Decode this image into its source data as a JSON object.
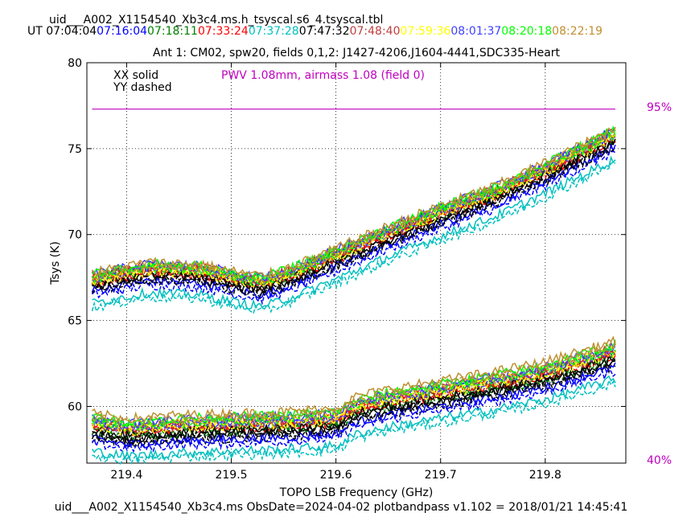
{
  "header": {
    "title": "uid___A002_X1154540_Xb3c4.ms.h_tsyscal.s6_4.tsyscal.tbl",
    "ut_label": "UT",
    "times": [
      {
        "text": "07:04:04",
        "color": "#000000"
      },
      {
        "text": "07:16:04",
        "color": "#0000ff"
      },
      {
        "text": "07:18:11",
        "color": "#008000"
      },
      {
        "text": "07:33:24",
        "color": "#ff0000"
      },
      {
        "text": "07:37:28",
        "color": "#00bfbf"
      },
      {
        "text": "07:47:32",
        "color": "#000000"
      },
      {
        "text": "07:48:40",
        "color": "#bf3f3f"
      },
      {
        "text": "07:59:36",
        "color": "#ffff00"
      },
      {
        "text": "08:01:37",
        "color": "#3f3fff"
      },
      {
        "text": "08:20:18",
        "color": "#00ff00"
      },
      {
        "text": "08:22:19",
        "color": "#bf8f30"
      }
    ]
  },
  "footer": {
    "text": "uid___A002_X1154540_Xb3c4.ms  ObsDate=2024-04-02   plotbandpass v1.102 = 2018/01/21 14:45:41"
  },
  "chart_data": {
    "type": "line",
    "title": "Ant 1: CM02,  spw20,  fields 0,1,2: J1427-4206,J1604-4441,SDC335-Heart",
    "xlabel": "TOPO LSB Frequency (GHz)",
    "ylabel": "Tsys (K)",
    "xlim": [
      219.362,
      219.877
    ],
    "ylim": [
      56.7,
      80.0
    ],
    "x_ticks": [
      219.4,
      219.5,
      219.6,
      219.7,
      219.8
    ],
    "x_tick_labels": [
      "219.4",
      "219.5",
      "219.6",
      "219.7",
      "219.8"
    ],
    "y_ticks": [
      60,
      65,
      70,
      75,
      80
    ],
    "y_tick_labels": [
      "60",
      "65",
      "70",
      "75",
      "80"
    ],
    "grid": true,
    "legend": {
      "position": "top-left",
      "items": [
        "XX solid",
        "YY dashed"
      ]
    },
    "annotation": {
      "text": "PWV 1.08mm, airmass 1.08 (field 0)",
      "color": "#c000c0"
    },
    "right_axis_labels": [
      {
        "text": "95%",
        "color": "#c000c0"
      },
      {
        "text": "40%",
        "color": "#c000c0"
      }
    ],
    "transmission_line": {
      "y": 77.3,
      "x_range": [
        219.367,
        219.867
      ],
      "color": "#c000c0"
    },
    "freq_range": [
      219.367,
      219.867
    ],
    "band_profiles": {
      "upper": {
        "x": [
          219.367,
          219.42,
          219.47,
          219.5,
          219.53,
          219.56,
          219.6,
          219.65,
          219.7,
          219.75,
          219.8,
          219.867
        ],
        "y": [
          67.4,
          68.0,
          67.9,
          67.5,
          67.2,
          67.8,
          68.8,
          70.1,
          71.3,
          72.4,
          73.8,
          75.8
        ]
      },
      "lower": {
        "x": [
          219.367,
          219.4,
          219.45,
          219.5,
          219.55,
          219.6,
          219.62,
          219.65,
          219.7,
          219.75,
          219.8,
          219.867
        ],
        "y": [
          59.0,
          58.7,
          58.9,
          59.0,
          59.1,
          59.3,
          60.0,
          60.4,
          60.9,
          61.4,
          62.0,
          63.2
        ]
      }
    },
    "series": [
      {
        "color": "#000000",
        "upper_offset": -0.3,
        "lower_offset": -0.6
      },
      {
        "color": "#0000ff",
        "upper_offset": -0.7,
        "lower_offset": -0.9
      },
      {
        "color": "#008000",
        "upper_offset": 0.1,
        "lower_offset": -0.2
      },
      {
        "color": "#ff0000",
        "upper_offset": 0.0,
        "lower_offset": 0.0
      },
      {
        "color": "#00bfbf",
        "upper_offset": -1.4,
        "lower_offset": -1.6
      },
      {
        "color": "#000000",
        "upper_offset": -0.4,
        "lower_offset": -0.4
      },
      {
        "color": "#bf3f3f",
        "upper_offset": 0.2,
        "lower_offset": 0.2
      },
      {
        "color": "#ffff00",
        "upper_offset": 0.1,
        "lower_offset": 0.1
      },
      {
        "color": "#3f3fff",
        "upper_offset": 0.3,
        "lower_offset": 0.3
      },
      {
        "color": "#00ff00",
        "upper_offset": 0.3,
        "lower_offset": 0.4
      },
      {
        "color": "#bf8f30",
        "upper_offset": 0.4,
        "lower_offset": 0.6
      }
    ]
  }
}
